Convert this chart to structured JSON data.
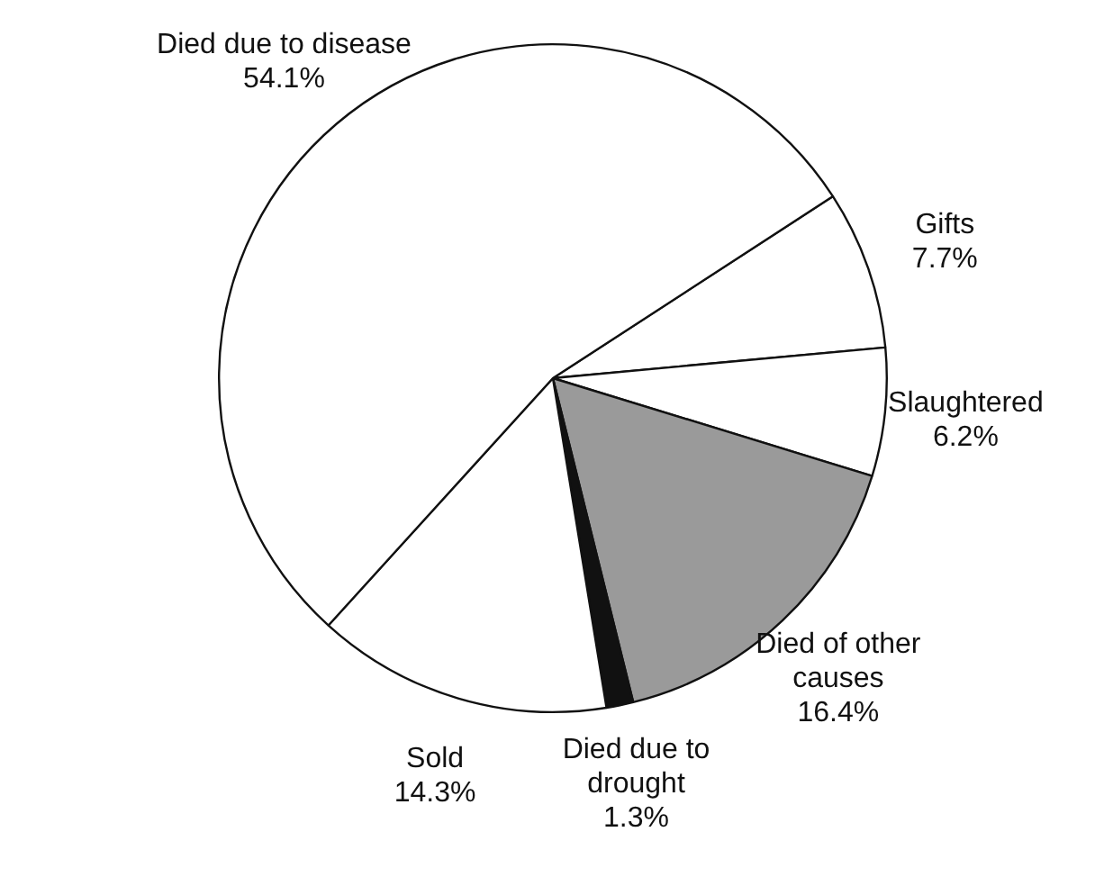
{
  "chart_data": {
    "type": "pie",
    "categories": [
      "Gifts",
      "Slaughtered",
      "Died of other\ncauses",
      "Died due to\ndrought",
      "Sold",
      "Died due to disease"
    ],
    "values": [
      7.7,
      6.2,
      16.4,
      1.3,
      14.3,
      54.1
    ],
    "value_labels": [
      "7.7%",
      "6.2%",
      "16.4%",
      "1.3%",
      "14.3%",
      "54.1%"
    ],
    "colors": [
      "#ffffff",
      "#ffffff",
      "#9a9a9a",
      "#111111",
      "#ffffff",
      "#ffffff"
    ],
    "legend": false
  }
}
